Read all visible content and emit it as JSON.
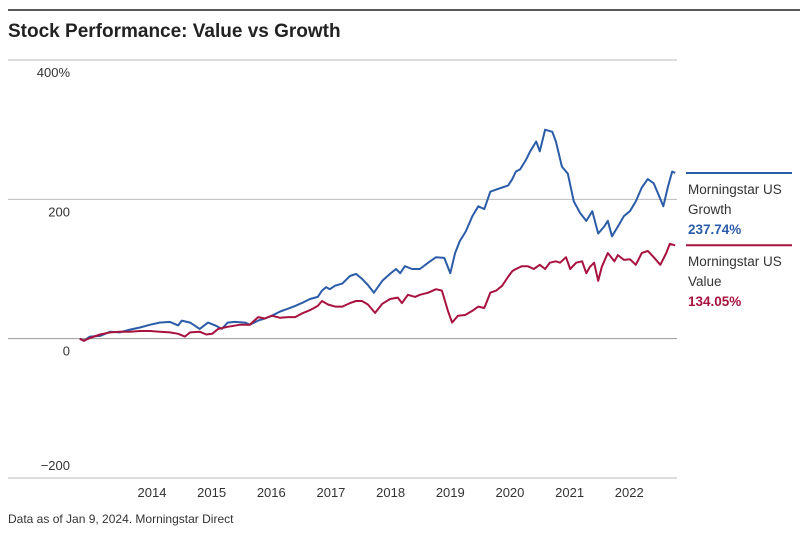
{
  "chart_data": {
    "type": "line",
    "title": "Stock Performance: Value vs Growth",
    "source": "Data as of Jan 9, 2024. Morningstar Direct",
    "xlim": [
      2013.21,
      2023.3
    ],
    "xticks": [
      {
        "value": 2014.5,
        "label": "2014"
      },
      {
        "value": 2015.5,
        "label": "2015"
      },
      {
        "value": 2016.5,
        "label": "2016"
      },
      {
        "value": 2017.5,
        "label": "2017"
      },
      {
        "value": 2018.5,
        "label": "2018"
      },
      {
        "value": 2019.5,
        "label": "2019"
      },
      {
        "value": 2020.5,
        "label": "2020"
      },
      {
        "value": 2021.5,
        "label": "2021"
      },
      {
        "value": 2022.5,
        "label": "2022"
      }
    ],
    "ylim": [
      -200,
      400
    ],
    "yticks": [
      {
        "value": 400,
        "label": "400%"
      },
      200,
      0,
      {
        "value": -200,
        "label": "−200"
      }
    ],
    "grid": true,
    "series": [
      {
        "name": "Morningstar US Growth",
        "color": "#2b5ca8",
        "end_label": "237.74%",
        "x": [
          2013.29,
          2013.36,
          2013.46,
          2013.63,
          2013.8,
          2013.96,
          2014.13,
          2014.3,
          2014.47,
          2014.63,
          2014.8,
          2014.94,
          2015.0,
          2015.14,
          2015.3,
          2015.44,
          2015.56,
          2015.67,
          2015.77,
          2015.89,
          2016.06,
          2016.14,
          2016.28,
          2016.39,
          2016.51,
          2016.65,
          2016.78,
          2016.9,
          2017.01,
          2017.15,
          2017.28,
          2017.35,
          2017.42,
          2017.48,
          2017.57,
          2017.69,
          2017.82,
          2017.92,
          2018.02,
          2018.12,
          2018.22,
          2018.36,
          2018.49,
          2018.59,
          2018.66,
          2018.74,
          2018.86,
          2018.99,
          2019.13,
          2019.26,
          2019.4,
          2019.5,
          2019.58,
          2019.66,
          2019.76,
          2019.87,
          2019.97,
          2020.07,
          2020.17,
          2020.27,
          2020.37,
          2020.47,
          2020.54,
          2020.6,
          2020.67,
          2020.77,
          2020.84,
          2020.94,
          2021.0,
          2021.09,
          2021.21,
          2021.27,
          2021.37,
          2021.47,
          2021.57,
          2021.68,
          2021.78,
          2021.88,
          2021.98,
          2022.08,
          2022.14,
          2022.21,
          2022.31,
          2022.41,
          2022.51,
          2022.61,
          2022.71,
          2022.81,
          2022.91,
          2022.98,
          2023.07,
          2023.15,
          2023.22,
          2023.27
        ],
        "values": [
          0,
          -3,
          3,
          4,
          10,
          9,
          13,
          16,
          20,
          23,
          24,
          19,
          26,
          23,
          14,
          23,
          19,
          14,
          23,
          24,
          23,
          20,
          26,
          29,
          33,
          39,
          43,
          47,
          51,
          57,
          60,
          69,
          74,
          71,
          76,
          79,
          90,
          93,
          86,
          77,
          66,
          83,
          93,
          100,
          94,
          104,
          100,
          100,
          109,
          117,
          116,
          94,
          123,
          140,
          154,
          176,
          190,
          186,
          211,
          214,
          217,
          220,
          229,
          240,
          243,
          257,
          269,
          283,
          269,
          300,
          297,
          283,
          247,
          237,
          197,
          180,
          169,
          183,
          151,
          161,
          169,
          147,
          161,
          176,
          183,
          197,
          217,
          229,
          223,
          209,
          190,
          219,
          240,
          237.74
        ]
      },
      {
        "name": "Morningstar US Value",
        "color": "#a8123e",
        "end_label": "134.05%",
        "x": [
          2013.29,
          2013.36,
          2013.46,
          2013.63,
          2013.8,
          2013.96,
          2014.13,
          2014.3,
          2014.47,
          2014.63,
          2014.8,
          2014.94,
          2015.05,
          2015.14,
          2015.3,
          2015.41,
          2015.51,
          2015.61,
          2015.77,
          2015.98,
          2016.14,
          2016.28,
          2016.39,
          2016.51,
          2016.65,
          2016.78,
          2016.9,
          2017.01,
          2017.15,
          2017.28,
          2017.35,
          2017.45,
          2017.57,
          2017.69,
          2017.82,
          2017.92,
          2018.02,
          2018.12,
          2018.24,
          2018.36,
          2018.49,
          2018.62,
          2018.69,
          2018.79,
          2018.91,
          2018.99,
          2019.13,
          2019.26,
          2019.36,
          2019.46,
          2019.53,
          2019.63,
          2019.75,
          2019.87,
          2019.97,
          2020.07,
          2020.17,
          2020.27,
          2020.37,
          2020.47,
          2020.54,
          2020.6,
          2020.7,
          2020.8,
          2020.9,
          2021.0,
          2021.09,
          2021.17,
          2021.27,
          2021.34,
          2021.44,
          2021.51,
          2021.61,
          2021.71,
          2021.78,
          2021.84,
          2021.91,
          2021.98,
          2022.04,
          2022.14,
          2022.25,
          2022.31,
          2022.41,
          2022.51,
          2022.61,
          2022.71,
          2022.81,
          2022.91,
          2023.02,
          2023.12,
          2023.18,
          2023.27
        ],
        "values": [
          0,
          -3,
          1,
          6,
          9,
          10,
          10,
          11,
          11,
          10,
          9,
          7,
          3,
          9,
          10,
          6,
          7,
          14,
          17,
          20,
          20,
          31,
          29,
          33,
          30,
          31,
          31,
          36,
          41,
          47,
          54,
          49,
          46,
          46,
          51,
          54,
          54,
          49,
          37,
          50,
          57,
          59,
          51,
          63,
          60,
          63,
          66,
          71,
          69,
          40,
          23,
          33,
          34,
          40,
          46,
          44,
          66,
          69,
          76,
          89,
          97,
          100,
          104,
          104,
          100,
          106,
          100,
          109,
          111,
          109,
          117,
          100,
          109,
          111,
          94,
          103,
          109,
          83,
          103,
          123,
          111,
          120,
          113,
          114,
          106,
          123,
          126,
          117,
          106,
          123,
          136,
          134.05
        ]
      }
    ]
  }
}
